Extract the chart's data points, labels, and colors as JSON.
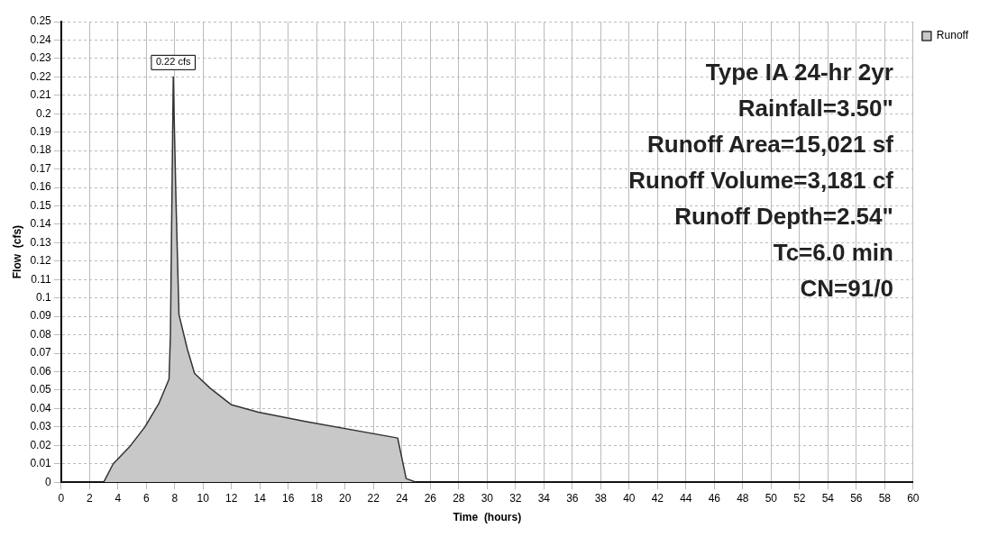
{
  "chart_data": {
    "type": "area",
    "xlabel": "Time  (hours)",
    "ylabel": "Flow  (cfs)",
    "x": [
      0,
      3,
      3.67,
      4.8,
      5.9,
      6.9,
      7.6,
      7.7,
      7.8,
      7.9,
      8.1,
      8.3,
      8.9,
      9.4,
      10.5,
      12,
      13.9,
      17.2,
      23.7,
      24.3,
      25,
      60
    ],
    "series": [
      {
        "name": "Runoff",
        "color": "#c8c8c8",
        "values": [
          0,
          0,
          0.01,
          0.019,
          0.03,
          0.043,
          0.056,
          0.08,
          0.15,
          0.22,
          0.15,
          0.091,
          0.072,
          0.059,
          0.051,
          0.042,
          0.038,
          0.033,
          0.024,
          0.002,
          0,
          0
        ]
      }
    ],
    "xlim": [
      0,
      60
    ],
    "xticks": [
      0,
      2,
      4,
      6,
      8,
      10,
      12,
      14,
      16,
      18,
      20,
      22,
      24,
      26,
      28,
      30,
      32,
      34,
      36,
      38,
      40,
      42,
      44,
      46,
      48,
      50,
      52,
      54,
      56,
      58,
      60
    ],
    "ylim": [
      0,
      0.25
    ],
    "yticks": [
      0,
      0.01,
      0.02,
      0.03,
      0.04,
      0.05,
      0.06,
      0.07,
      0.08,
      0.09,
      0.1,
      0.11,
      0.12,
      0.13,
      0.14,
      0.15,
      0.16,
      0.17,
      0.18,
      0.19,
      0.2,
      0.21,
      0.22,
      0.23,
      0.24,
      0.25
    ],
    "grid": true,
    "legend": "top right",
    "annotations": [
      {
        "text": "0.22 cfs",
        "x": 7.9,
        "y": 0.22
      },
      "Type IA 24-hr 2yr",
      "Rainfall=3.50\"",
      "Runoff Area=15,021 sf",
      "Runoff Volume=3,181 cf",
      "Runoff Depth=2.54\"",
      "Tc=6.0 min",
      "CN=91/0"
    ]
  }
}
